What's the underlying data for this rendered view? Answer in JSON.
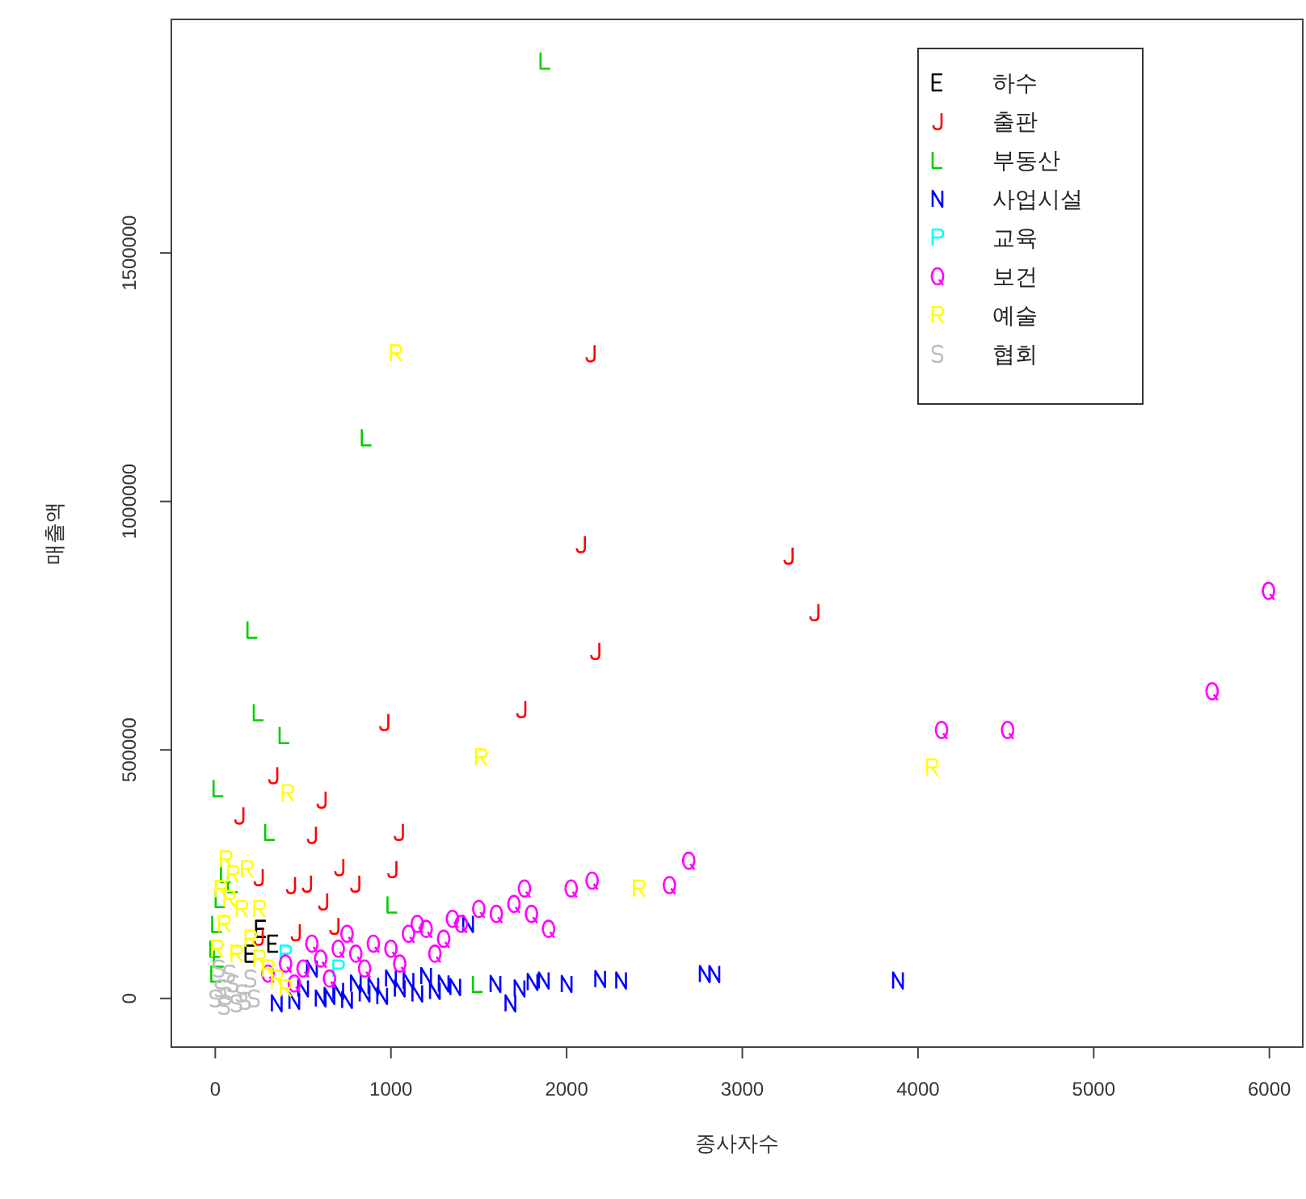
{
  "chart_data": {
    "type": "scatter",
    "xlabel": "종사자수",
    "ylabel": "매출액",
    "xlim": [
      -250,
      6190
    ],
    "ylim": [
      -98000,
      1970000
    ],
    "xticks": [
      0,
      1000,
      2000,
      3000,
      4000,
      5000,
      6000
    ],
    "yticks": [
      0,
      500000,
      1000000,
      1500000
    ],
    "legend": "top right",
    "series": [
      {
        "name": "하수",
        "color": "#000000",
        "x": [
          260,
          330,
          200
        ],
        "values": [
          140000,
          110000,
          90000
        ]
      },
      {
        "name": "출판",
        "color": "#ff0000",
        "x": [
          2136,
          2081,
          3263,
          3410,
          2163,
          962,
          1742,
          330,
          137,
          605,
          550,
          1045,
          247,
          431,
          522,
          706,
          797,
          1008,
          614,
          458,
          247,
          678
        ],
        "values": [
          1298000,
          914000,
          891000,
          777000,
          699000,
          556000,
          582000,
          449000,
          368000,
          400000,
          329000,
          335000,
          244000,
          228000,
          231000,
          264000,
          231000,
          260000,
          195000,
          133000,
          124000,
          146000
        ]
      },
      {
        "name": "부동산",
        "color": "#00cd00",
        "x": [
          1879,
          862,
          211,
          247,
          394,
          18,
          312,
          1008,
          1494,
          0,
          10,
          30,
          5,
          60,
          100,
          20
        ],
        "values": [
          1887000,
          1129000,
          742000,
          576000,
          530000,
          423000,
          335000,
          189000,
          29000,
          100000,
          150000,
          200000,
          50000,
          250000,
          230000,
          80000
        ]
      },
      {
        "name": "사업시설",
        "color": "#0000ff",
        "x": [
          3886,
          2786,
          2841,
          2191,
          2310,
          2000,
          1870,
          1806,
          1732,
          1595,
          1366,
          1439,
          1680,
          500,
          600,
          700,
          800,
          900,
          1000,
          1100,
          1200,
          1300,
          350,
          450,
          650,
          750,
          850,
          950,
          1050,
          1150,
          1250,
          550
        ],
        "values": [
          36000,
          49000,
          49000,
          39000,
          36000,
          29000,
          36000,
          33000,
          20000,
          29000,
          23000,
          150000,
          -10000,
          20000,
          0,
          15000,
          30000,
          25000,
          40000,
          35000,
          45000,
          30000,
          -10000,
          -5000,
          5000,
          -3000,
          10000,
          5000,
          20000,
          10000,
          15000,
          60000
        ]
      },
      {
        "name": "교육",
        "color": "#00ffff",
        "x": [
          400,
          700
        ],
        "values": [
          90000,
          60000
        ]
      },
      {
        "name": "보건",
        "color": "#ff00ff",
        "x": [
          5995,
          5674,
          4134,
          4510,
          2695,
          2585,
          2145,
          2026,
          1897,
          1760,
          300,
          400,
          500,
          600,
          700,
          800,
          900,
          1000,
          1100,
          1200,
          1300,
          1400,
          1500,
          1600,
          1700,
          1800,
          450,
          650,
          850,
          1050,
          1250,
          550,
          750,
          1150,
          1350
        ],
        "values": [
          820000,
          618000,
          540000,
          540000,
          277000,
          228000,
          237000,
          221000,
          140000,
          221000,
          50000,
          70000,
          60000,
          80000,
          100000,
          90000,
          110000,
          100000,
          130000,
          140000,
          120000,
          150000,
          180000,
          170000,
          190000,
          170000,
          30000,
          40000,
          60000,
          70000,
          90000,
          110000,
          130000,
          150000,
          160000
        ]
      },
      {
        "name": "예술",
        "color": "#ffff00",
        "x": [
          1027,
          4079,
          1512,
          412,
          2411,
          10,
          50,
          80,
          100,
          150,
          200,
          250,
          300,
          350,
          60,
          180,
          120,
          30,
          400,
          250
        ],
        "values": [
          1298000,
          465000,
          485000,
          413000,
          221000,
          100000,
          150000,
          200000,
          250000,
          180000,
          120000,
          80000,
          60000,
          40000,
          280000,
          260000,
          90000,
          220000,
          20000,
          180000
        ]
      },
      {
        "name": "협회",
        "color": "#bebebe",
        "x": [
          0,
          30,
          60,
          100,
          150,
          200,
          80,
          20,
          170,
          120,
          50,
          220
        ],
        "values": [
          0,
          20000,
          5000,
          30000,
          10000,
          40000,
          50000,
          60000,
          -5000,
          -10000,
          -15000,
          0
        ]
      }
    ]
  }
}
